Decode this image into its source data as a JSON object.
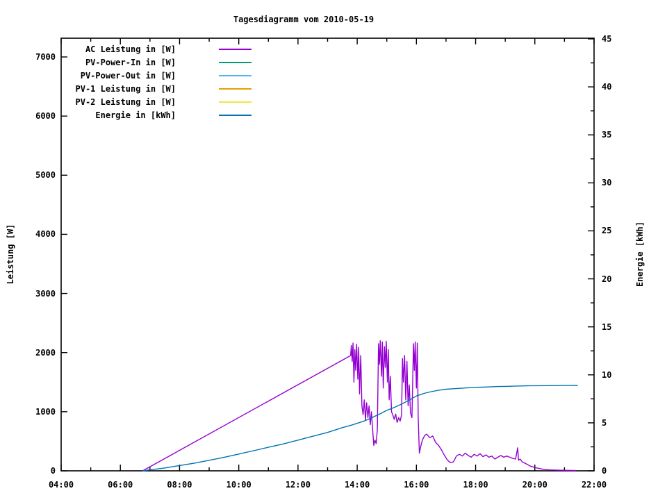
{
  "chart_data": {
    "type": "line",
    "title": "Tagesdiagramm vom 2010-05-19",
    "ylabel_left": "Leistung [W]",
    "ylabel_right": "Energie [kWh]",
    "x_axis": {
      "min": 4,
      "max": 22,
      "minor_step_hours": 1,
      "major_ticks": [
        [
          4,
          "04:00"
        ],
        [
          6,
          "06:00"
        ],
        [
          8,
          "08:00"
        ],
        [
          10,
          "10:00"
        ],
        [
          12,
          "12:00"
        ],
        [
          14,
          "14:00"
        ],
        [
          16,
          "16:00"
        ],
        [
          18,
          "18:00"
        ],
        [
          20,
          "20:00"
        ],
        [
          22,
          "22:00"
        ]
      ]
    },
    "y_left_axis": {
      "min": 0,
      "max_at_top_border": 7310,
      "tick_step": 1000,
      "ticks": [
        [
          0,
          "0"
        ],
        [
          1000,
          "1000"
        ],
        [
          2000,
          "2000"
        ],
        [
          3000,
          "3000"
        ],
        [
          4000,
          "4000"
        ],
        [
          5000,
          "5000"
        ],
        [
          6000,
          "6000"
        ],
        [
          7000,
          "7000"
        ]
      ]
    },
    "y_right_axis": {
      "min": 0,
      "max": 45,
      "minor_step": 2.5,
      "ticks": [
        [
          0,
          "0"
        ],
        [
          5,
          "5"
        ],
        [
          10,
          "10"
        ],
        [
          15,
          "15"
        ],
        [
          20,
          "20"
        ],
        [
          25,
          "25"
        ],
        [
          30,
          "30"
        ],
        [
          35,
          "35"
        ],
        [
          40,
          "40"
        ],
        [
          45,
          "45"
        ]
      ]
    },
    "grid": false,
    "legend_position": "top-left-inside",
    "series": [
      {
        "id": "ac-leistung",
        "label": "AC Leistung in [W]",
        "color": "#9400d3",
        "axis": "left",
        "points": [
          [
            6.75,
            0
          ],
          [
            13.78,
            1950
          ],
          [
            13.8,
            2120
          ],
          [
            13.83,
            1850
          ],
          [
            13.86,
            2160
          ],
          [
            13.89,
            1500
          ],
          [
            13.92,
            2050
          ],
          [
            13.95,
            1700
          ],
          [
            13.98,
            2140
          ],
          [
            14.02,
            1550
          ],
          [
            14.05,
            2090
          ],
          [
            14.08,
            1300
          ],
          [
            14.12,
            1950
          ],
          [
            14.16,
            1100
          ],
          [
            14.2,
            950
          ],
          [
            14.24,
            1200
          ],
          [
            14.28,
            860
          ],
          [
            14.32,
            1150
          ],
          [
            14.36,
            900
          ],
          [
            14.4,
            1100
          ],
          [
            14.44,
            780
          ],
          [
            14.48,
            1000
          ],
          [
            14.52,
            700
          ],
          [
            14.56,
            430
          ],
          [
            14.6,
            520
          ],
          [
            14.64,
            460
          ],
          [
            14.68,
            700
          ],
          [
            14.72,
            2150
          ],
          [
            14.75,
            1800
          ],
          [
            14.78,
            2200
          ],
          [
            14.82,
            1600
          ],
          [
            14.85,
            2180
          ],
          [
            14.88,
            1400
          ],
          [
            14.92,
            2100
          ],
          [
            14.95,
            1750
          ],
          [
            14.98,
            2190
          ],
          [
            15.02,
            1500
          ],
          [
            15.05,
            2050
          ],
          [
            15.08,
            1200
          ],
          [
            15.12,
            1600
          ],
          [
            15.16,
            1000
          ],
          [
            15.2,
            950
          ],
          [
            15.25,
            870
          ],
          [
            15.3,
            960
          ],
          [
            15.35,
            820
          ],
          [
            15.4,
            900
          ],
          [
            15.45,
            840
          ],
          [
            15.5,
            950
          ],
          [
            15.53,
            1900
          ],
          [
            15.56,
            1500
          ],
          [
            15.6,
            1950
          ],
          [
            15.64,
            1200
          ],
          [
            15.68,
            1850
          ],
          [
            15.72,
            1100
          ],
          [
            15.76,
            1450
          ],
          [
            15.8,
            980
          ],
          [
            15.85,
            900
          ],
          [
            15.9,
            2150
          ],
          [
            15.93,
            1700
          ],
          [
            15.96,
            2180
          ],
          [
            16.0,
            1400
          ],
          [
            16.03,
            2160
          ],
          [
            16.06,
            900
          ],
          [
            16.1,
            300
          ],
          [
            16.15,
            420
          ],
          [
            16.2,
            520
          ],
          [
            16.28,
            600
          ],
          [
            16.35,
            620
          ],
          [
            16.45,
            560
          ],
          [
            16.55,
            590
          ],
          [
            16.65,
            480
          ],
          [
            16.75,
            430
          ],
          [
            16.85,
            350
          ],
          [
            16.95,
            260
          ],
          [
            17.05,
            180
          ],
          [
            17.15,
            140
          ],
          [
            17.25,
            150
          ],
          [
            17.35,
            250
          ],
          [
            17.45,
            280
          ],
          [
            17.55,
            250
          ],
          [
            17.65,
            300
          ],
          [
            17.75,
            260
          ],
          [
            17.85,
            230
          ],
          [
            17.95,
            280
          ],
          [
            18.05,
            250
          ],
          [
            18.15,
            290
          ],
          [
            18.25,
            240
          ],
          [
            18.35,
            270
          ],
          [
            18.45,
            230
          ],
          [
            18.55,
            250
          ],
          [
            18.65,
            200
          ],
          [
            18.75,
            230
          ],
          [
            18.85,
            260
          ],
          [
            18.95,
            230
          ],
          [
            19.05,
            250
          ],
          [
            19.15,
            230
          ],
          [
            19.25,
            210
          ],
          [
            19.35,
            200
          ],
          [
            19.42,
            390
          ],
          [
            19.45,
            180
          ],
          [
            19.5,
            200
          ],
          [
            19.58,
            150
          ],
          [
            19.7,
            120
          ],
          [
            19.85,
            80
          ],
          [
            20.0,
            55
          ],
          [
            20.15,
            40
          ],
          [
            20.3,
            25
          ],
          [
            20.5,
            15
          ],
          [
            20.8,
            10
          ],
          [
            21.1,
            8
          ],
          [
            21.4,
            5
          ]
        ]
      },
      {
        "id": "pv-power-in",
        "label": "PV-Power-In in [W]",
        "color": "#009e73",
        "axis": "left",
        "points": []
      },
      {
        "id": "pv-power-out",
        "label": "PV-Power-Out in [W]",
        "color": "#56b4e9",
        "axis": "left",
        "points": []
      },
      {
        "id": "pv-1-leistung",
        "label": "PV-1 Leistung in [W]",
        "color": "#e69f00",
        "axis": "left",
        "points": []
      },
      {
        "id": "pv-2-leistung",
        "label": "PV-2 Leistung in [W]",
        "color": "#f0e442",
        "axis": "left",
        "points": []
      },
      {
        "id": "energie",
        "label": "Energie in [kWh]",
        "color": "#0072b2",
        "axis": "right",
        "points": [
          [
            6.75,
            0
          ],
          [
            7.0,
            0.1
          ],
          [
            7.5,
            0.3
          ],
          [
            8.0,
            0.55
          ],
          [
            8.5,
            0.8
          ],
          [
            9.0,
            1.1
          ],
          [
            9.5,
            1.4
          ],
          [
            10.0,
            1.75
          ],
          [
            10.5,
            2.1
          ],
          [
            11.0,
            2.45
          ],
          [
            11.5,
            2.8
          ],
          [
            12.0,
            3.2
          ],
          [
            12.5,
            3.6
          ],
          [
            13.0,
            4.0
          ],
          [
            13.5,
            4.5
          ],
          [
            13.8,
            4.75
          ],
          [
            14.0,
            4.95
          ],
          [
            14.25,
            5.2
          ],
          [
            14.5,
            5.55
          ],
          [
            14.75,
            5.9
          ],
          [
            15.0,
            6.3
          ],
          [
            15.25,
            6.6
          ],
          [
            15.5,
            6.95
          ],
          [
            15.75,
            7.35
          ],
          [
            16.0,
            7.8
          ],
          [
            16.15,
            7.95
          ],
          [
            16.3,
            8.1
          ],
          [
            16.5,
            8.25
          ],
          [
            16.75,
            8.4
          ],
          [
            17.0,
            8.5
          ],
          [
            17.25,
            8.55
          ],
          [
            17.5,
            8.6
          ],
          [
            17.75,
            8.65
          ],
          [
            18.0,
            8.7
          ],
          [
            18.25,
            8.72
          ],
          [
            18.5,
            8.75
          ],
          [
            18.75,
            8.78
          ],
          [
            19.0,
            8.8
          ],
          [
            19.25,
            8.82
          ],
          [
            19.5,
            8.84
          ],
          [
            19.75,
            8.86
          ],
          [
            20.0,
            8.87
          ],
          [
            20.5,
            8.88
          ],
          [
            21.0,
            8.89
          ],
          [
            21.45,
            8.9
          ]
        ]
      }
    ],
    "axis_color": "#000000",
    "background_color": "#ffffff"
  }
}
